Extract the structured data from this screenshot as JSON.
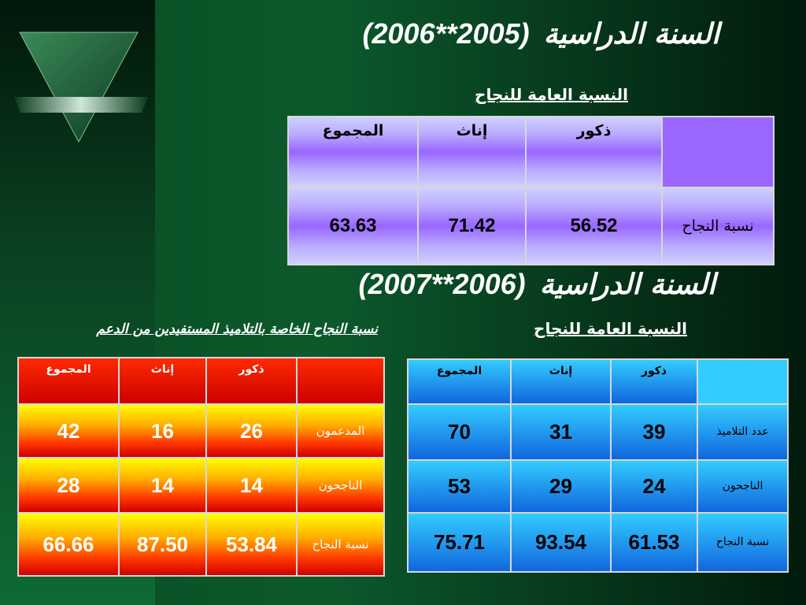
{
  "title_1": {
    "text": "السنة الدراسية",
    "years": "(2006**2005)"
  },
  "table_1": {
    "title": "النسبة العامة للنجاح",
    "header": [
      "ذكور",
      "إناث",
      "المجموع"
    ],
    "rows": [
      {
        "label": "نسبة النجاح",
        "values": [
          56.52,
          71.42,
          63.63
        ]
      }
    ]
  },
  "title_2": {
    "text": "السنة الدراسية",
    "years": "(2007**2006)"
  },
  "table_2": {
    "title": "النسبة العامة للنجاح",
    "header": [
      "ذكور",
      "إناث",
      "المجموع"
    ],
    "rows": [
      {
        "label": "عدد التلاميذ",
        "values": [
          39,
          31,
          70
        ]
      },
      {
        "label": "الناجحون",
        "values": [
          24,
          29,
          53
        ]
      },
      {
        "label": "نسبة النجاح",
        "values": [
          61.53,
          93.54,
          75.71
        ]
      }
    ]
  },
  "table_3": {
    "title": "نسبة النجاح الخاصة بالتلاميذ المستفيدين من الدعم",
    "header": [
      "ذكور",
      "إناث",
      "المجموع"
    ],
    "rows": [
      {
        "label": "المدعمون",
        "values": [
          26,
          16,
          42
        ]
      },
      {
        "label": "الناجحون",
        "values": [
          14,
          14,
          28
        ]
      },
      {
        "label": "نسبة النجاح",
        "values": [
          53.84,
          "87.50",
          66.66
        ]
      }
    ]
  }
}
